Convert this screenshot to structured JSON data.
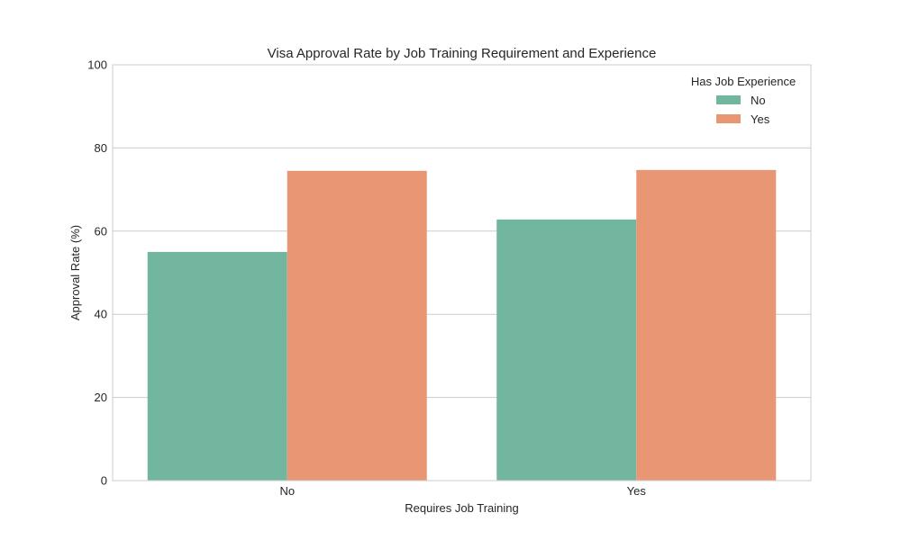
{
  "chart_data": {
    "type": "bar",
    "title": "Visa Approval Rate by Job Training Requirement and Experience",
    "xlabel": "Requires Job Training",
    "ylabel": "Approval Rate (%)",
    "categories": [
      "No",
      "Yes"
    ],
    "ylim": [
      0,
      100
    ],
    "yticks": [
      "0",
      "20",
      "40",
      "60",
      "80",
      "100"
    ],
    "grid": true,
    "legend": {
      "title": "Has Job Experience",
      "placement": "top-right"
    },
    "series": [
      {
        "name": "No",
        "values": [
          55.0,
          62.8
        ],
        "color": "#73b6a0"
      },
      {
        "name": "Yes",
        "values": [
          74.5,
          74.7
        ],
        "color": "#e89673"
      }
    ]
  }
}
